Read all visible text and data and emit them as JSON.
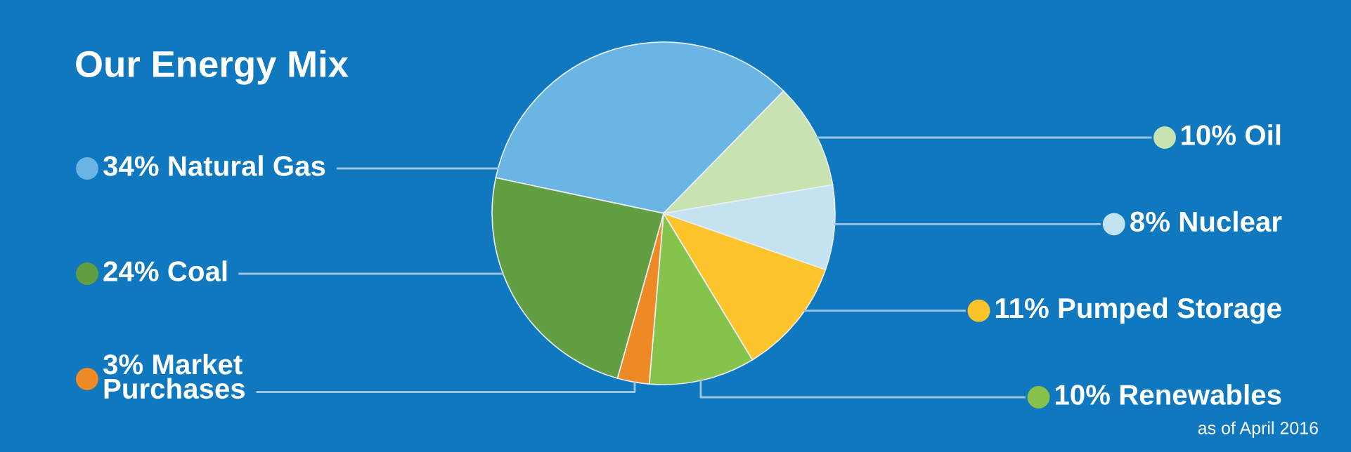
{
  "chart_data": {
    "type": "pie",
    "title": "Our Energy Mix",
    "categories": [
      "Natural Gas",
      "Oil",
      "Nuclear",
      "Pumped Storage",
      "Renewables",
      "Market\nPurchases",
      "Coal"
    ],
    "values": [
      34,
      10,
      8,
      11,
      10,
      3,
      24
    ],
    "value_labels": [
      "34%",
      "10%",
      "8%",
      "11%",
      "10%",
      "3%",
      "24%"
    ],
    "colors": [
      "#6bb5e5",
      "#c8e2b2",
      "#c4e3f1",
      "#fec42b",
      "#85c34a",
      "#ee8a25",
      "#629e42"
    ],
    "legend": "left",
    "annotations": [
      "as of April 2016"
    ]
  }
}
